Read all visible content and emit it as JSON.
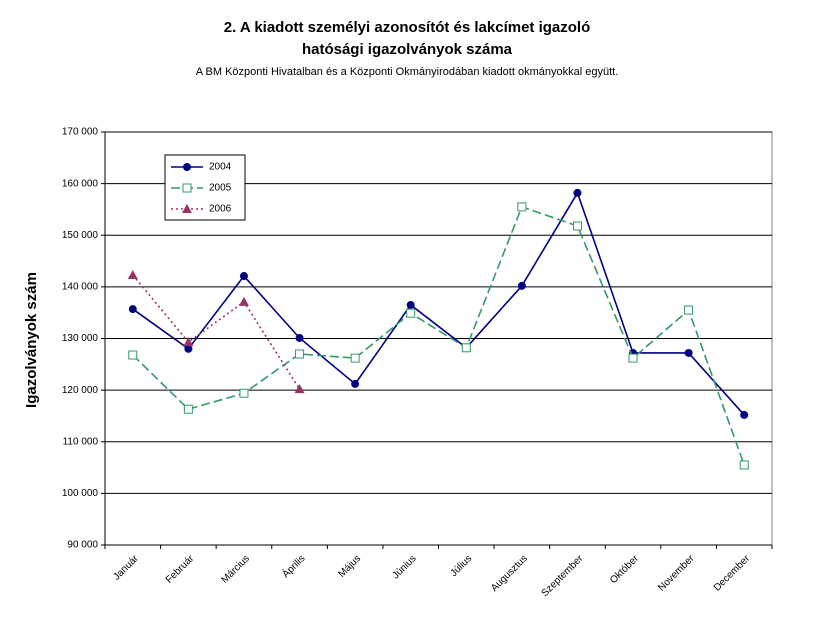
{
  "chart_data": {
    "type": "line",
    "title": [
      "2. A kiadott személyi azonosítót és lakcímet igazoló",
      "hatósági igazolványok száma"
    ],
    "subtitle": "A BM Központi Hivatalban és a Központi Okmányirodában kiadott okmányokkal együtt.",
    "y_label": "Igazolványok szám",
    "categories": [
      "Január",
      "Február",
      "Március",
      "Április",
      "Május",
      "Június",
      "Július",
      "Augusztus",
      "Szeptember",
      "Október",
      "November",
      "December"
    ],
    "series": [
      {
        "name": "2004",
        "color": "#000080",
        "dash": "none",
        "marker": "circle",
        "values": [
          135700,
          128000,
          142100,
          130100,
          121200,
          136500,
          128200,
          140200,
          158200,
          127200,
          127200,
          115200
        ]
      },
      {
        "name": "2005",
        "color": "#339966",
        "dash": "dashed",
        "marker": "square",
        "values": [
          126800,
          116300,
          119400,
          127000,
          126200,
          134900,
          128200,
          155500,
          151800,
          126200,
          135500,
          105500
        ]
      },
      {
        "name": "2006",
        "color": "#993366",
        "dash": "dotted",
        "marker": "triangle",
        "values": [
          142300,
          129300,
          137100,
          120200,
          null,
          null,
          null,
          null,
          null,
          null,
          null,
          null
        ]
      }
    ],
    "ylim": [
      90000,
      170000
    ],
    "yticks": [
      {
        "value": 90000,
        "label": "90 000"
      },
      {
        "value": 100000,
        "label": "100 000"
      },
      {
        "value": 110000,
        "label": "110 000"
      },
      {
        "value": 120000,
        "label": "120 000"
      },
      {
        "value": 130000,
        "label": "130 000"
      },
      {
        "value": 140000,
        "label": "140 000"
      },
      {
        "value": 150000,
        "label": "150 000"
      },
      {
        "value": 160000,
        "label": "160 000"
      },
      {
        "value": 170000,
        "label": "170 000"
      }
    ],
    "grid": true,
    "legend": "top-left"
  }
}
